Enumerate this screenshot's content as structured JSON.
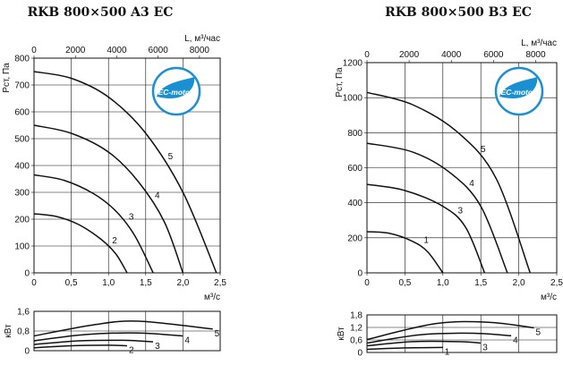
{
  "chart_data": [
    {
      "type": "line",
      "title": "RKB 800×500 A3 EC",
      "badge": "EC-motor",
      "top_axis_label": "L, м³/час",
      "top_ticks": [
        "0",
        "2000",
        "4000",
        "6000",
        "8000"
      ],
      "ylabel": "Pст, Па",
      "xlabel": "м³/с",
      "xlim": [
        0,
        2.5
      ],
      "ylim": [
        0,
        800
      ],
      "x_ticks": [
        "0",
        "0,5",
        "1,0",
        "1,5",
        "2,0",
        "2,5"
      ],
      "y_ticks": [
        "0",
        "100",
        "200",
        "300",
        "400",
        "500",
        "600",
        "700",
        "800"
      ],
      "series": [
        {
          "name": "2",
          "points": [
            [
              0,
              220
            ],
            [
              0.3,
              210
            ],
            [
              0.6,
              180
            ],
            [
              0.9,
              125
            ],
            [
              1.1,
              70
            ],
            [
              1.25,
              0
            ]
          ]
        },
        {
          "name": "3",
          "points": [
            [
              0,
              365
            ],
            [
              0.4,
              345
            ],
            [
              0.8,
              295
            ],
            [
              1.1,
              230
            ],
            [
              1.35,
              140
            ],
            [
              1.6,
              0
            ]
          ]
        },
        {
          "name": "4",
          "points": [
            [
              0,
              550
            ],
            [
              0.5,
              520
            ],
            [
              1.0,
              450
            ],
            [
              1.4,
              340
            ],
            [
              1.75,
              190
            ],
            [
              2.0,
              0
            ]
          ]
        },
        {
          "name": "5",
          "points": [
            [
              0,
              750
            ],
            [
              0.5,
              725
            ],
            [
              1.0,
              655
            ],
            [
              1.5,
              520
            ],
            [
              2.0,
              300
            ],
            [
              2.45,
              0
            ]
          ]
        }
      ],
      "power": {
        "ylabel": "кВт",
        "ylim": [
          0,
          1.6
        ],
        "y_ticks": [
          "0",
          "0,8",
          "1,6"
        ],
        "series": [
          {
            "name": "2",
            "points": [
              [
                0,
                0.12
              ],
              [
                0.5,
                0.2
              ],
              [
                1.0,
                0.22
              ],
              [
                1.25,
                0.2
              ]
            ]
          },
          {
            "name": "3",
            "points": [
              [
                0,
                0.25
              ],
              [
                0.6,
                0.4
              ],
              [
                1.2,
                0.42
              ],
              [
                1.6,
                0.36
              ]
            ]
          },
          {
            "name": "4",
            "points": [
              [
                0,
                0.4
              ],
              [
                0.7,
                0.66
              ],
              [
                1.4,
                0.72
              ],
              [
                2.0,
                0.6
              ]
            ]
          },
          {
            "name": "5",
            "points": [
              [
                0,
                0.6
              ],
              [
                0.8,
                1.05
              ],
              [
                1.4,
                1.2
              ],
              [
                2.4,
                0.88
              ]
            ]
          }
        ]
      }
    },
    {
      "type": "line",
      "title": "RKB 800×500 B3 EC",
      "badge": "EC-motor",
      "top_axis_label": "L, м³/час",
      "top_ticks": [
        "0",
        "2000",
        "4000",
        "6000",
        "8000"
      ],
      "ylabel": "Pст, Па",
      "xlabel": "м³/с",
      "xlim": [
        0,
        2.5
      ],
      "ylim": [
        0,
        1200
      ],
      "x_ticks": [
        "0",
        "0,5",
        "1,0",
        "1,5",
        "2,0",
        "2,5"
      ],
      "y_ticks": [
        "0",
        "200",
        "400",
        "600",
        "800",
        "1000",
        "1200"
      ],
      "series": [
        {
          "name": "1",
          "points": [
            [
              0,
              235
            ],
            [
              0.3,
              225
            ],
            [
              0.6,
              180
            ],
            [
              0.8,
              120
            ],
            [
              1.0,
              0
            ]
          ]
        },
        {
          "name": "3",
          "points": [
            [
              0,
              505
            ],
            [
              0.5,
              470
            ],
            [
              1.0,
              380
            ],
            [
              1.3,
              260
            ],
            [
              1.55,
              0
            ]
          ]
        },
        {
          "name": "4",
          "points": [
            [
              0,
              740
            ],
            [
              0.6,
              690
            ],
            [
              1.1,
              570
            ],
            [
              1.5,
              380
            ],
            [
              1.85,
              0
            ]
          ]
        },
        {
          "name": "5",
          "points": [
            [
              0,
              1030
            ],
            [
              0.6,
              960
            ],
            [
              1.2,
              800
            ],
            [
              1.7,
              540
            ],
            [
              2.15,
              0
            ]
          ]
        }
      ],
      "power": {
        "ylabel": "кВт",
        "ylim": [
          0,
          1.8
        ],
        "y_ticks": [
          "0",
          "0,6",
          "1,2",
          "1,8"
        ],
        "series": [
          {
            "name": "1",
            "points": [
              [
                0,
                0.15
              ],
              [
                0.5,
                0.22
              ],
              [
                1.0,
                0.24
              ]
            ]
          },
          {
            "name": "3",
            "points": [
              [
                0,
                0.32
              ],
              [
                0.6,
                0.52
              ],
              [
                1.2,
                0.52
              ],
              [
                1.5,
                0.45
              ]
            ]
          },
          {
            "name": "4",
            "points": [
              [
                0,
                0.45
              ],
              [
                0.7,
                0.85
              ],
              [
                1.4,
                0.92
              ],
              [
                1.9,
                0.8
              ]
            ]
          },
          {
            "name": "5",
            "points": [
              [
                0,
                0.62
              ],
              [
                0.9,
                1.38
              ],
              [
                1.6,
                1.45
              ],
              [
                2.2,
                1.18
              ]
            ]
          }
        ]
      }
    }
  ]
}
